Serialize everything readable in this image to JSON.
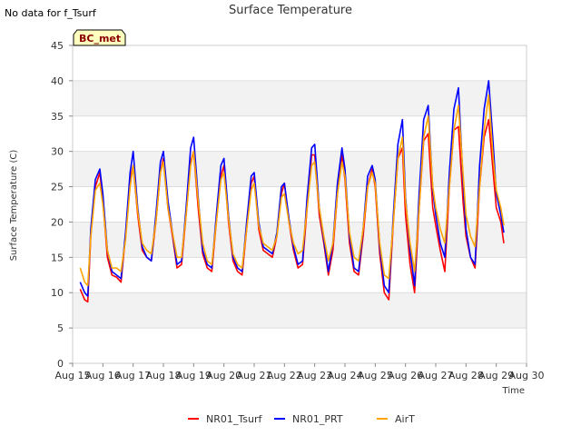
{
  "no_data_note": "No data for f_Tsurf",
  "badge": "BC_met",
  "colors": {
    "band": "#f2f2f2",
    "grid": "#dddddd",
    "badge_fill": "#ffffc0"
  },
  "chart_data": {
    "type": "line",
    "title": "Surface Temperature",
    "xlabel": "Time",
    "ylabel": "Surface Temperature (C)",
    "ylim": [
      0,
      45
    ],
    "yticks": [
      0,
      5,
      10,
      15,
      20,
      25,
      30,
      35,
      40,
      45
    ],
    "xlim": [
      15,
      30
    ],
    "xticks": [
      15,
      16,
      17,
      18,
      19,
      20,
      21,
      22,
      23,
      24,
      25,
      26,
      27,
      28,
      29,
      30
    ],
    "xtick_labels": [
      "Aug 15",
      "Aug 16",
      "Aug 17",
      "Aug 18",
      "Aug 19",
      "Aug 20",
      "Aug 21",
      "Aug 22",
      "Aug 23",
      "Aug 24",
      "Aug 25",
      "Aug 26",
      "Aug 27",
      "Aug 28",
      "Aug 29",
      "Aug 30"
    ],
    "grid": true,
    "legend_position": "bottom",
    "series": [
      {
        "name": "NR01_Tsurf",
        "color": "#ff0000",
        "x": [
          15.25,
          15.4,
          15.5,
          15.6,
          15.75,
          15.9,
          16.0,
          16.15,
          16.3,
          16.45,
          16.6,
          16.75,
          16.9,
          17.0,
          17.15,
          17.3,
          17.45,
          17.6,
          17.75,
          17.9,
          18.0,
          18.15,
          18.3,
          18.45,
          18.6,
          18.75,
          18.9,
          19.0,
          19.15,
          19.3,
          19.45,
          19.6,
          19.75,
          19.9,
          20.0,
          20.15,
          20.3,
          20.45,
          20.6,
          20.75,
          20.9,
          21.0,
          21.15,
          21.3,
          21.45,
          21.6,
          21.75,
          21.9,
          22.0,
          22.15,
          22.3,
          22.45,
          22.6,
          22.75,
          22.9,
          23.0,
          23.15,
          23.3,
          23.45,
          23.6,
          23.75,
          23.9,
          24.0,
          24.15,
          24.3,
          24.45,
          24.6,
          24.75,
          24.9,
          25.0,
          25.15,
          25.3,
          25.45,
          25.6,
          25.75,
          25.9,
          26.0,
          26.15,
          26.3,
          26.45,
          26.6,
          26.75,
          26.9,
          27.0,
          27.15,
          27.3,
          27.45,
          27.6,
          27.75,
          27.9,
          28.0,
          28.15,
          28.3,
          28.45,
          28.6,
          28.75,
          28.9,
          29.0,
          29.15,
          29.25
        ],
        "values": [
          10.5,
          9.0,
          8.7,
          18.0,
          25.0,
          27.0,
          23.0,
          15.0,
          12.5,
          12.2,
          11.5,
          18.0,
          26.0,
          28.0,
          21.0,
          16.0,
          15.0,
          14.5,
          20.0,
          27.0,
          29.0,
          22.0,
          18.0,
          13.5,
          14.0,
          21.0,
          28.5,
          30.0,
          22.0,
          15.5,
          13.5,
          13.0,
          20.0,
          26.5,
          28.0,
          20.0,
          14.5,
          13.0,
          12.5,
          19.0,
          25.5,
          26.5,
          19.0,
          16.0,
          15.5,
          15.0,
          18.0,
          24.0,
          25.5,
          20.0,
          16.0,
          13.5,
          14.0,
          22.0,
          29.5,
          29.5,
          21.0,
          17.0,
          12.5,
          16.0,
          24.0,
          29.5,
          26.0,
          17.0,
          13.0,
          12.5,
          18.0,
          25.0,
          27.5,
          25.0,
          15.5,
          10.0,
          9.0,
          20.0,
          29.0,
          30.5,
          21.0,
          14.0,
          10.0,
          22.0,
          31.5,
          32.5,
          22.0,
          19.5,
          16.0,
          13.0,
          25.0,
          33.0,
          33.5,
          23.0,
          18.0,
          15.0,
          13.5,
          25.0,
          32.0,
          34.5,
          27.0,
          22.0,
          20.0,
          17.0
        ]
      },
      {
        "name": "NR01_PRT",
        "color": "#0000ff",
        "x": [
          15.25,
          15.4,
          15.5,
          15.6,
          15.75,
          15.9,
          16.0,
          16.15,
          16.3,
          16.45,
          16.6,
          16.75,
          16.9,
          17.0,
          17.15,
          17.3,
          17.45,
          17.6,
          17.75,
          17.9,
          18.0,
          18.15,
          18.3,
          18.45,
          18.6,
          18.75,
          18.9,
          19.0,
          19.15,
          19.3,
          19.45,
          19.6,
          19.75,
          19.9,
          20.0,
          20.15,
          20.3,
          20.45,
          20.6,
          20.75,
          20.9,
          21.0,
          21.15,
          21.3,
          21.45,
          21.6,
          21.75,
          21.9,
          22.0,
          22.15,
          22.3,
          22.45,
          22.6,
          22.75,
          22.9,
          23.0,
          23.15,
          23.3,
          23.45,
          23.6,
          23.75,
          23.9,
          24.0,
          24.15,
          24.3,
          24.45,
          24.6,
          24.75,
          24.9,
          25.0,
          25.15,
          25.3,
          25.45,
          25.6,
          25.75,
          25.9,
          26.0,
          26.15,
          26.3,
          26.45,
          26.6,
          26.75,
          26.9,
          27.0,
          27.15,
          27.3,
          27.45,
          27.6,
          27.75,
          27.9,
          28.0,
          28.15,
          28.3,
          28.45,
          28.6,
          28.75,
          28.9,
          29.0,
          29.15,
          29.25
        ],
        "values": [
          11.5,
          10.0,
          9.5,
          19.0,
          26.0,
          27.5,
          24.0,
          16.0,
          13.0,
          12.5,
          12.0,
          18.5,
          27.0,
          30.0,
          22.0,
          16.5,
          15.0,
          14.5,
          21.0,
          28.5,
          30.0,
          23.0,
          18.5,
          14.0,
          14.5,
          22.0,
          30.5,
          32.0,
          23.5,
          16.0,
          14.0,
          13.5,
          21.0,
          28.0,
          29.0,
          21.0,
          15.0,
          13.5,
          13.0,
          20.0,
          26.5,
          27.0,
          20.0,
          16.5,
          16.0,
          15.5,
          18.5,
          25.0,
          25.5,
          20.5,
          16.5,
          14.0,
          14.5,
          23.5,
          30.5,
          31.0,
          22.0,
          17.5,
          13.0,
          17.0,
          25.5,
          30.5,
          27.5,
          18.0,
          13.5,
          13.0,
          19.0,
          26.5,
          28.0,
          26.0,
          16.5,
          11.0,
          10.0,
          21.0,
          31.0,
          34.5,
          23.5,
          16.0,
          11.0,
          24.0,
          34.5,
          36.5,
          24.5,
          21.0,
          17.0,
          15.0,
          27.0,
          36.0,
          39.0,
          26.0,
          19.0,
          15.0,
          14.0,
          28.0,
          36.0,
          40.0,
          31.0,
          24.0,
          21.0,
          18.5
        ]
      },
      {
        "name": "AirT",
        "color": "#ffa500",
        "x": [
          15.25,
          15.4,
          15.5,
          15.6,
          15.75,
          15.9,
          16.0,
          16.15,
          16.3,
          16.45,
          16.6,
          16.75,
          16.9,
          17.0,
          17.15,
          17.3,
          17.45,
          17.6,
          17.75,
          17.9,
          18.0,
          18.15,
          18.3,
          18.45,
          18.6,
          18.75,
          18.9,
          19.0,
          19.15,
          19.3,
          19.45,
          19.6,
          19.75,
          19.9,
          20.0,
          20.15,
          20.3,
          20.45,
          20.6,
          20.75,
          20.9,
          21.0,
          21.15,
          21.3,
          21.45,
          21.6,
          21.75,
          21.9,
          22.0,
          22.15,
          22.3,
          22.45,
          22.6,
          22.75,
          22.9,
          23.0,
          23.15,
          23.3,
          23.45,
          23.6,
          23.75,
          23.9,
          24.0,
          24.15,
          24.3,
          24.45,
          24.6,
          24.75,
          24.9,
          25.0,
          25.15,
          25.3,
          25.45,
          25.6,
          25.75,
          25.9,
          26.0,
          26.15,
          26.3,
          26.45,
          26.6,
          26.75,
          26.9,
          27.0,
          27.15,
          27.3,
          27.45,
          27.6,
          27.75,
          27.9,
          28.0,
          28.15,
          28.3,
          28.45,
          28.6,
          28.75,
          28.9,
          29.0,
          29.15,
          29.25
        ],
        "values": [
          13.5,
          11.5,
          11.0,
          18.0,
          24.5,
          25.5,
          22.5,
          16.0,
          13.5,
          13.5,
          13.0,
          17.5,
          25.0,
          28.0,
          21.5,
          17.0,
          16.0,
          15.5,
          20.0,
          27.0,
          28.5,
          22.0,
          18.5,
          15.0,
          15.0,
          21.0,
          28.0,
          30.0,
          23.0,
          17.0,
          14.5,
          14.0,
          20.0,
          26.0,
          27.0,
          20.5,
          15.5,
          14.0,
          13.5,
          19.0,
          24.5,
          25.5,
          19.5,
          17.0,
          16.5,
          16.0,
          18.0,
          23.5,
          24.0,
          20.0,
          17.0,
          15.5,
          16.0,
          22.0,
          28.0,
          28.5,
          22.0,
          18.0,
          14.5,
          17.0,
          24.0,
          28.5,
          26.5,
          18.5,
          15.0,
          14.5,
          19.0,
          25.0,
          27.0,
          25.5,
          17.0,
          12.5,
          12.0,
          20.0,
          29.0,
          32.0,
          23.0,
          17.0,
          13.0,
          22.0,
          32.0,
          35.0,
          25.0,
          22.0,
          19.0,
          17.0,
          25.0,
          33.0,
          36.5,
          27.0,
          21.0,
          18.0,
          16.5,
          25.0,
          33.0,
          38.0,
          29.0,
          24.5,
          22.0,
          19.5
        ]
      }
    ]
  }
}
